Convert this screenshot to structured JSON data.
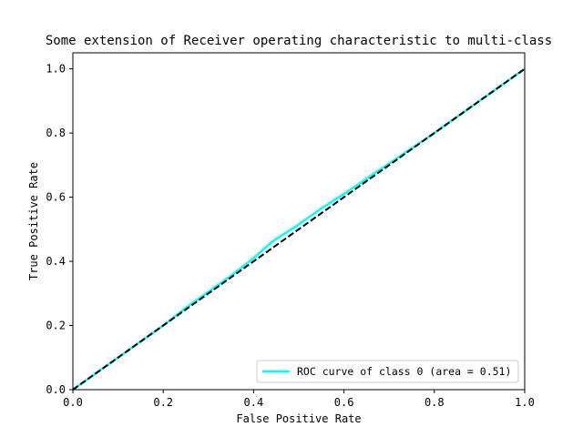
{
  "chart_data": {
    "type": "line",
    "title": "Some extension of Receiver operating characteristic to multi-class",
    "xlabel": "False Positive Rate",
    "ylabel": "True Positive Rate",
    "xlim": [
      0.0,
      1.0
    ],
    "ylim": [
      0.0,
      1.05
    ],
    "xticks": [
      0.0,
      0.2,
      0.4,
      0.6,
      0.8,
      1.0
    ],
    "yticks": [
      0.0,
      0.2,
      0.4,
      0.6,
      0.8,
      1.0
    ],
    "xtick_labels": [
      "0.0",
      "0.2",
      "0.4",
      "0.6",
      "0.8",
      "1.0"
    ],
    "ytick_labels": [
      "0.0",
      "0.2",
      "0.4",
      "0.6",
      "0.8",
      "1.0"
    ],
    "grid": false,
    "legend_position": "lower-right",
    "series": [
      {
        "name": "ROC curve of class 0 (area = 0.51)",
        "color": "#00ffff",
        "style": "solid",
        "x": [
          0.0,
          0.05,
          0.1,
          0.15,
          0.2,
          0.25,
          0.3,
          0.35,
          0.4,
          0.44,
          0.5,
          0.55,
          0.6,
          0.7,
          0.8,
          0.9,
          1.0
        ],
        "y": [
          0.0,
          0.05,
          0.1,
          0.15,
          0.2,
          0.255,
          0.305,
          0.355,
          0.41,
          0.46,
          0.515,
          0.565,
          0.61,
          0.705,
          0.8,
          0.9,
          1.0
        ]
      },
      {
        "name": "",
        "color": "#000000",
        "style": "dashed",
        "x": [
          0.0,
          1.0
        ],
        "y": [
          0.0,
          1.0
        ]
      }
    ]
  }
}
